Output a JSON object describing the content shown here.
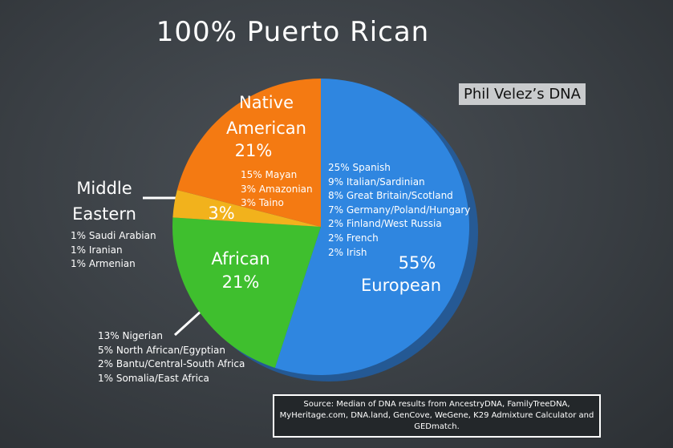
{
  "chart_data": {
    "type": "pie",
    "title": "100% Puerto Rican",
    "subtitle": "Phil Velez’s DNA",
    "categories": [
      "European",
      "African",
      "Middle Eastern",
      "Native American"
    ],
    "values": [
      55,
      21,
      3,
      21
    ],
    "value_labels": [
      "55%",
      "21%",
      "3%",
      "21%"
    ],
    "colors": [
      "#2f86e0",
      "#3fbf2e",
      "#f2b21c",
      "#f47a12"
    ],
    "breakdowns": [
      [
        "25% Spanish",
        "9% Italian/Sardinian",
        "8% Great Britain/Scotland",
        "7% Germany/Poland/Hungary",
        "2% Finland/West Russia",
        "2% French",
        "2% Irish"
      ],
      [
        "13% Nigerian",
        "5% North African/Egyptian",
        "2% Bantu/Central-South Africa",
        "1% Somalia/East Africa"
      ],
      [
        "1% Saudi Arabian",
        "1% Iranian",
        "1% Armenian"
      ],
      [
        "15% Mayan",
        "3% Amazonian",
        "3% Taino"
      ]
    ],
    "source": "Source: Median of DNA results from AncestryDNA, FamilyTreeDNA, MyHeritage.com, DNA.land, GenCove, WeGene, K29 Admixture Calculator and GEDmatch."
  }
}
